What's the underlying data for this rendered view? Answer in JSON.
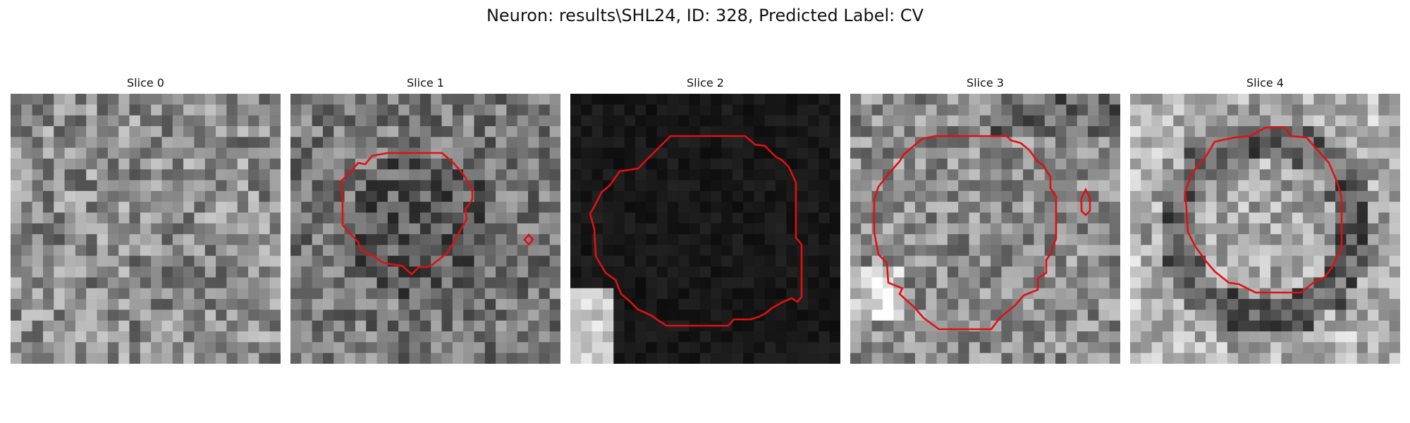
{
  "title": "Neuron: results\\SHL24, ID: 328, Predicted Label: CV",
  "contour_color": "#e11010",
  "panels": [
    {
      "label": "Slice 0"
    },
    {
      "label": "Slice 1"
    },
    {
      "label": "Slice 2"
    },
    {
      "label": "Slice 3"
    },
    {
      "label": "Slice 4"
    }
  ]
}
